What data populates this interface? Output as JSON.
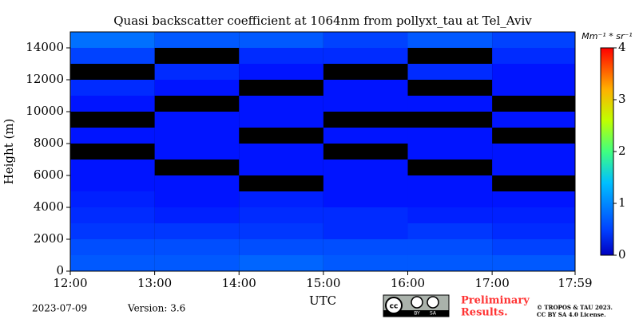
{
  "chart_data": {
    "type": "heatmap",
    "title": "Quasi backscatter coefficient at 1064nm from pollyxt_tau at Tel_Aviv",
    "y_label": "Height (m)",
    "x_label": "UTC",
    "colorbar_label": "Mm⁻¹ * sr⁻¹",
    "x_bins": [
      720,
      780,
      840,
      900,
      960,
      1020,
      1079
    ],
    "y_bins": [
      0,
      1000,
      2000,
      3000,
      4000,
      5000,
      6000,
      7000,
      8000,
      9000,
      10000,
      11000,
      12000,
      13000,
      14000,
      15000
    ],
    "z": [
      [
        0.5,
        0.5,
        0.55,
        0.5,
        0.5,
        0.5
      ],
      [
        0.45,
        0.45,
        0.45,
        0.45,
        0.45,
        0.4
      ],
      [
        0.35,
        0.35,
        0.35,
        0.3,
        0.35,
        0.3
      ],
      [
        0.3,
        0.25,
        0.3,
        0.3,
        0.25,
        0.25
      ],
      [
        0.25,
        0.2,
        0.25,
        0.2,
        0.2,
        0.2
      ],
      [
        0.2,
        0.2,
        null,
        0.2,
        0.2,
        null
      ],
      [
        0.2,
        null,
        0.2,
        0.2,
        null,
        0.2
      ],
      [
        null,
        0.2,
        0.2,
        null,
        0.2,
        0.2
      ],
      [
        0.2,
        0.2,
        null,
        0.2,
        0.2,
        null
      ],
      [
        null,
        0.2,
        0.2,
        null,
        null,
        0.2
      ],
      [
        0.2,
        null,
        0.2,
        0.2,
        0.2,
        null
      ],
      [
        0.3,
        0.2,
        null,
        0.2,
        null,
        0.2
      ],
      [
        null,
        0.3,
        0.2,
        null,
        0.3,
        0.2
      ],
      [
        0.4,
        null,
        0.3,
        0.3,
        null,
        0.3
      ],
      [
        0.6,
        0.5,
        0.5,
        0.4,
        0.5,
        0.4
      ]
    ],
    "xlim": [
      720,
      1079
    ],
    "xticks": [
      {
        "value": 720,
        "label": "12:00"
      },
      {
        "value": 780,
        "label": "13:00"
      },
      {
        "value": 840,
        "label": "14:00"
      },
      {
        "value": 900,
        "label": "15:00"
      },
      {
        "value": 960,
        "label": "16:00"
      },
      {
        "value": 1020,
        "label": "17:00"
      },
      {
        "value": 1079,
        "label": "17:59"
      }
    ],
    "ylim": [
      0,
      15000
    ],
    "yticks": [
      0,
      2000,
      4000,
      6000,
      8000,
      10000,
      12000,
      14000
    ],
    "clim": [
      0,
      4
    ],
    "cticks": [
      0,
      1,
      2,
      3,
      4
    ],
    "colormap": "jet"
  },
  "footer": {
    "date": "2023-07-09",
    "version": "Version: 3.6",
    "license_badge": [
      "BY",
      "SA"
    ],
    "preliminary": [
      "Preliminary",
      "Results."
    ],
    "copyright": [
      "© TROPOS & TAU 2023.",
      "CC BY SA 4.0 License."
    ]
  }
}
